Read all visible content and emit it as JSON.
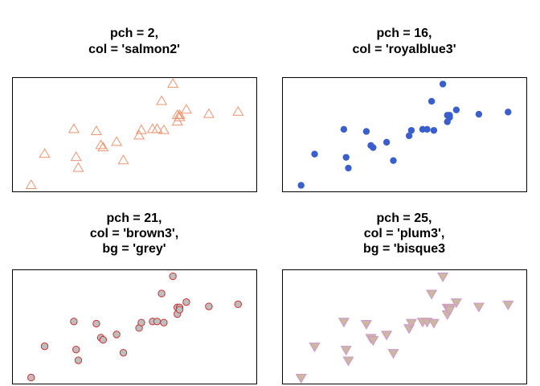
{
  "chart_data": [
    {
      "type": "scatter",
      "title_lines": [
        "pch = 2,",
        "col = 'salmon2'"
      ],
      "marker": "triangle-up-open",
      "color": "#EE9572",
      "fill": null,
      "axes_shown": false,
      "xlim": [
        0,
        100
      ],
      "ylim": [
        0,
        100
      ],
      "x": [
        4,
        10,
        23,
        24,
        25,
        33,
        35,
        36,
        42,
        45,
        52,
        53,
        58,
        60,
        62,
        63,
        67,
        69,
        69,
        70,
        70,
        73,
        83,
        96
      ],
      "y": [
        3,
        32,
        55,
        29,
        19,
        53,
        40,
        38,
        43,
        26,
        49,
        54,
        55,
        55,
        81,
        54,
        97,
        68,
        62,
        68,
        66,
        73,
        69,
        71
      ]
    },
    {
      "type": "scatter",
      "title_lines": [
        "pch = 16,",
        "col = 'royalblue3'"
      ],
      "marker": "circle-filled",
      "color": "#3A5FCD",
      "fill": "#3A5FCD",
      "axes_shown": false,
      "xlim": [
        0,
        100
      ],
      "ylim": [
        0,
        100
      ],
      "x": [
        4,
        10,
        23,
        24,
        25,
        33,
        35,
        36,
        42,
        45,
        52,
        53,
        58,
        60,
        62,
        63,
        67,
        69,
        69,
        70,
        70,
        73,
        83,
        96
      ],
      "y": [
        3,
        32,
        55,
        29,
        19,
        53,
        40,
        38,
        43,
        26,
        49,
        54,
        55,
        55,
        81,
        54,
        97,
        68,
        62,
        68,
        66,
        73,
        69,
        71
      ]
    },
    {
      "type": "scatter",
      "title_lines": [
        "pch = 21,",
        "col = 'brown3',",
        "bg = 'grey'"
      ],
      "marker": "circle-bordered",
      "color": "#CD3333",
      "fill": "#BEBEBE",
      "axes_shown": false,
      "xlim": [
        0,
        100
      ],
      "ylim": [
        0,
        100
      ],
      "x": [
        4,
        10,
        23,
        24,
        25,
        33,
        35,
        36,
        42,
        45,
        52,
        53,
        58,
        60,
        62,
        63,
        67,
        69,
        69,
        70,
        70,
        73,
        83,
        96
      ],
      "y": [
        3,
        32,
        55,
        29,
        19,
        53,
        40,
        38,
        43,
        26,
        49,
        54,
        55,
        55,
        81,
        54,
        97,
        68,
        62,
        68,
        66,
        73,
        69,
        71
      ]
    },
    {
      "type": "scatter",
      "title_lines": [
        "pch = 25,",
        "col = 'plum3',",
        "bg = 'bisque3"
      ],
      "marker": "triangle-down-bordered",
      "color": "#CD96CD",
      "fill": "#CDB79E",
      "axes_shown": false,
      "xlim": [
        0,
        100
      ],
      "ylim": [
        0,
        100
      ],
      "x": [
        4,
        10,
        23,
        24,
        25,
        33,
        35,
        36,
        42,
        45,
        52,
        53,
        58,
        60,
        62,
        63,
        67,
        69,
        69,
        70,
        70,
        73,
        83,
        96
      ],
      "y": [
        3,
        32,
        55,
        29,
        19,
        53,
        40,
        38,
        43,
        26,
        49,
        54,
        55,
        55,
        81,
        54,
        97,
        68,
        62,
        68,
        66,
        73,
        69,
        71
      ]
    }
  ]
}
